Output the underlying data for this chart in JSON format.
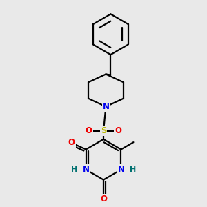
{
  "background_color": "#e9e9e9",
  "line_color": "#000000",
  "atom_colors": {
    "N": "#0000ee",
    "O": "#ee0000",
    "S": "#bbbb00",
    "H_on_N": "#007070",
    "C": "#000000"
  },
  "line_width": 1.6,
  "figsize": [
    3.0,
    3.0
  ],
  "dpi": 100
}
